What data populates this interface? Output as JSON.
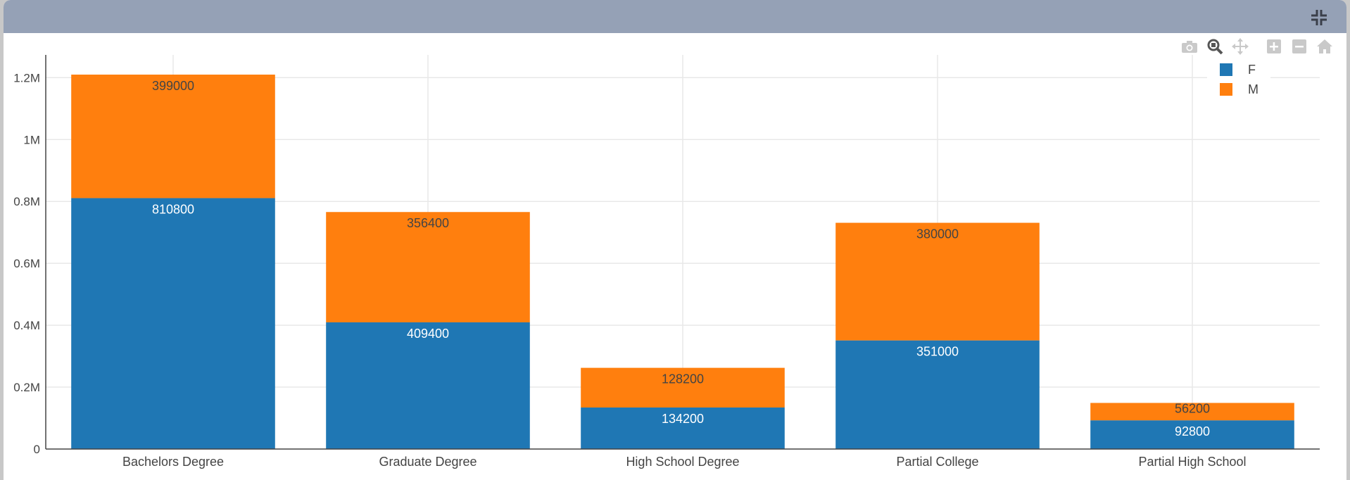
{
  "toolbar": {
    "icons": [
      "compress-icon",
      "camera-icon",
      "zoom-icon",
      "pan-icon",
      "zoom-in-icon",
      "zoom-out-icon",
      "home-icon"
    ]
  },
  "colors": {
    "F": "#1f77b4",
    "M": "#ff7f0e",
    "titlebar": "#95a1b6"
  },
  "chart_data": {
    "type": "bar",
    "barmode": "stack",
    "categories": [
      "Bachelors Degree",
      "Graduate Degree",
      "High School Degree",
      "Partial College",
      "Partial High School"
    ],
    "series": [
      {
        "name": "F",
        "values": [
          810800,
          409400,
          134200,
          351000,
          92800
        ]
      },
      {
        "name": "M",
        "values": [
          399000,
          356400,
          128200,
          380000,
          56200
        ]
      }
    ],
    "yticks": [
      "0",
      "0.2M",
      "0.4M",
      "0.6M",
      "0.8M",
      "1M",
      "1.2M"
    ],
    "ytick_values": [
      0,
      200000,
      400000,
      600000,
      800000,
      1000000,
      1200000
    ],
    "ylim": [
      0,
      1273474
    ],
    "grid": true,
    "legend_position": "top-right"
  }
}
